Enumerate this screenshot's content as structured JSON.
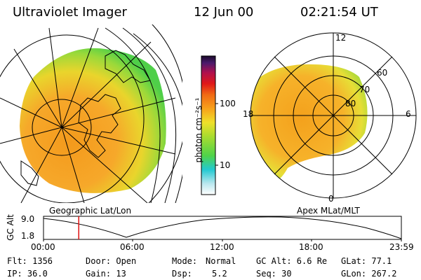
{
  "header": {
    "instrument": "Ultraviolet Imager",
    "date": "12 Jun 00",
    "time": "02:21:54 UT"
  },
  "colorbar": {
    "unit_label": "photon cm⁻²s⁻¹",
    "tick_100": "100",
    "tick_10": "10"
  },
  "left_panel": {
    "label": "Geographic Lat/Lon"
  },
  "right_panel": {
    "label": "Apex MLat/MLT",
    "mlt_12": "12",
    "mlt_18": "18",
    "mlt_6": "6",
    "mlt_0": "0",
    "lat_60": "60",
    "lat_70": "70",
    "lat_80": "80"
  },
  "altitude_plot": {
    "ylabel": "GC Alt",
    "y_max": "9.0",
    "y_min": "1.8",
    "x_ticks": [
      "00:00",
      "06:00",
      "12:00",
      "18:00",
      "23:59"
    ],
    "marker_time_hours": 2.365
  },
  "status": {
    "flt": "Flt: 1356",
    "ip": "IP: 36.0",
    "door": "Door: Open",
    "gain": "Gain: 13",
    "mode_label": "Mode:",
    "mode_value": "Normal",
    "dsp_label": "Dsp:",
    "dsp_value": "5.2",
    "gc_alt": "GC Alt: 6.6 Re",
    "seq": "Seq: 30",
    "glat": "GLat: 77.1",
    "glon": "GLon: 267.2"
  },
  "colors": {
    "aurora_orange": "#f7a21b",
    "aurora_yellow": "#e6e02e",
    "aurora_green": "#55d447",
    "marker_red": "#e01010"
  }
}
